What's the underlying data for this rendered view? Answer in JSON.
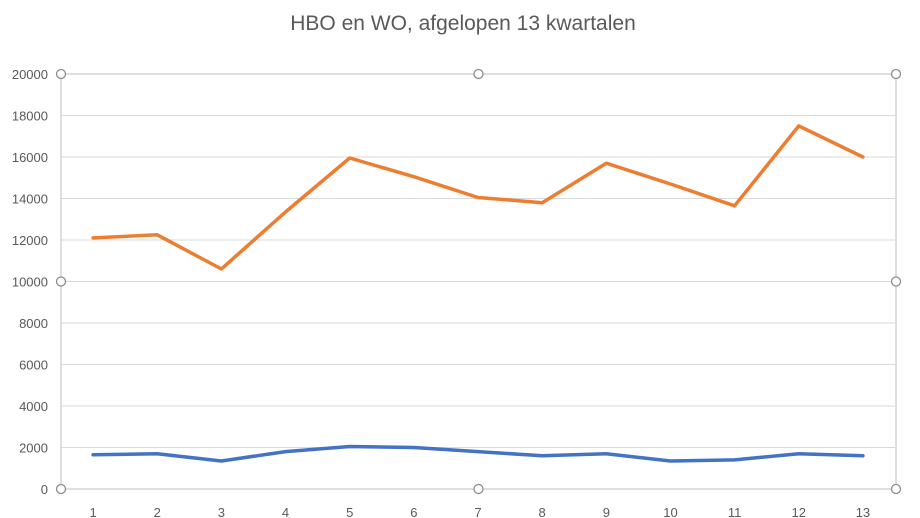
{
  "chart_data": {
    "type": "line",
    "title": "HBO en WO,  afgelopen 13 kwartalen",
    "xlabel": "",
    "ylabel": "",
    "categories": [
      "1",
      "2",
      "3",
      "4",
      "5",
      "6",
      "7",
      "8",
      "9",
      "10",
      "11",
      "12",
      "13"
    ],
    "yticks": [
      "0",
      "2000",
      "4000",
      "6000",
      "8000",
      "10000",
      "12000",
      "14000",
      "16000",
      "18000",
      "20000"
    ],
    "ylim": [
      0,
      20000
    ],
    "grid": true,
    "legend": "none",
    "series": [
      {
        "color": "#ED7D31",
        "values": [
          12100,
          12250,
          10600,
          13350,
          15950,
          15050,
          14050,
          13800,
          15700,
          14700,
          13650,
          17500,
          16000
        ]
      },
      {
        "color": "#4472C4",
        "values": [
          1650,
          1700,
          1350,
          1800,
          2050,
          2000,
          1800,
          1600,
          1700,
          1350,
          1400,
          1700,
          1600
        ]
      }
    ],
    "selection_handles": true
  }
}
